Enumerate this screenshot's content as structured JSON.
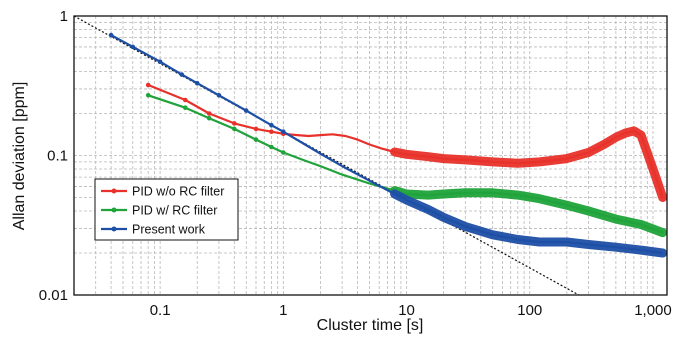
{
  "chart_data": {
    "type": "line",
    "xlabel": "Cluster time [s]",
    "ylabel": "Allan deviation [ppm]",
    "xscale": "log",
    "yscale": "log",
    "xlim": [
      0.02,
      1300
    ],
    "ylim": [
      0.01,
      1
    ],
    "grid": true,
    "legend_position": "left-middle",
    "x_ticks": [
      {
        "value": 0.1,
        "label": "0.1"
      },
      {
        "value": 1,
        "label": "1"
      },
      {
        "value": 10,
        "label": "10"
      },
      {
        "value": 100,
        "label": "100"
      },
      {
        "value": 1000,
        "label": "1,000"
      }
    ],
    "y_ticks": [
      {
        "value": 1,
        "label": "1"
      },
      {
        "value": 0.1,
        "label": "0.1"
      },
      {
        "value": 0.01,
        "label": "0.01"
      }
    ],
    "series": [
      {
        "name": "PID w/o RC filter",
        "color": "#e8312a",
        "x": [
          0.08,
          0.16,
          0.25,
          0.4,
          0.6,
          0.8,
          1.0,
          1.3,
          1.6,
          2.0,
          2.5,
          3.2,
          4.0,
          5.0,
          6.3,
          8.0,
          10,
          15,
          20,
          30,
          50,
          80,
          120,
          200,
          300,
          400,
          500,
          600,
          700,
          800,
          1000,
          1200
        ],
        "y": [
          0.32,
          0.25,
          0.2,
          0.17,
          0.155,
          0.148,
          0.143,
          0.14,
          0.138,
          0.14,
          0.142,
          0.138,
          0.13,
          0.12,
          0.112,
          0.106,
          0.102,
          0.098,
          0.095,
          0.093,
          0.09,
          0.088,
          0.09,
          0.095,
          0.105,
          0.12,
          0.135,
          0.145,
          0.15,
          0.14,
          0.08,
          0.05
        ]
      },
      {
        "name": "PID w/ RC filter",
        "color": "#1fa33a",
        "x": [
          0.08,
          0.16,
          0.25,
          0.4,
          0.6,
          0.8,
          1.0,
          1.5,
          2.0,
          3.0,
          5.0,
          8.0,
          10,
          15,
          20,
          30,
          50,
          80,
          120,
          200,
          300,
          500,
          800,
          1200
        ],
        "y": [
          0.27,
          0.22,
          0.185,
          0.155,
          0.13,
          0.115,
          0.105,
          0.092,
          0.084,
          0.073,
          0.063,
          0.056,
          0.053,
          0.052,
          0.053,
          0.054,
          0.054,
          0.052,
          0.049,
          0.044,
          0.04,
          0.035,
          0.032,
          0.028
        ]
      },
      {
        "name": "Present work",
        "color": "#1d4fa6",
        "x": [
          0.04,
          0.06,
          0.1,
          0.15,
          0.2,
          0.3,
          0.5,
          0.8,
          1.0,
          1.5,
          2.0,
          3.0,
          5.0,
          8.0,
          10,
          15,
          20,
          30,
          50,
          80,
          120,
          200,
          300,
          500,
          800,
          1200
        ],
        "y": [
          0.73,
          0.6,
          0.47,
          0.38,
          0.33,
          0.27,
          0.21,
          0.165,
          0.148,
          0.12,
          0.103,
          0.084,
          0.066,
          0.053,
          0.048,
          0.041,
          0.036,
          0.031,
          0.027,
          0.025,
          0.024,
          0.024,
          0.023,
          0.022,
          0.021,
          0.02
        ]
      },
      {
        "name": "",
        "color": "#111111",
        "style": "dotted",
        "x": [
          0.02,
          250
        ],
        "y": [
          1,
          0.01
        ]
      }
    ]
  }
}
